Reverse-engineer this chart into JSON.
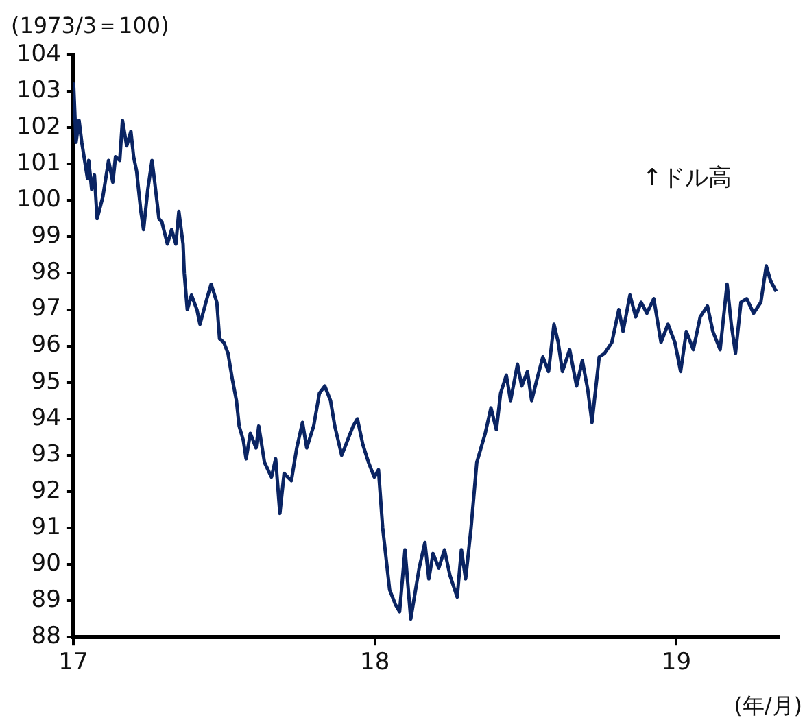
{
  "chart_data": {
    "type": "line",
    "ylabel": "(1973/3＝100)",
    "xlabel": "(年/月)",
    "annotations": [
      "↑ドル高"
    ],
    "xlim": [
      17,
      19.34
    ],
    "xticks": [
      17,
      18,
      19
    ],
    "ylim": [
      88,
      104
    ],
    "yticks": [
      88,
      89,
      90,
      91,
      92,
      93,
      94,
      95,
      96,
      97,
      98,
      99,
      100,
      101,
      102,
      103,
      104
    ],
    "grid": false,
    "legend": false,
    "marker": "none",
    "line_style": "solid",
    "series": [
      {
        "color": "#0a2463",
        "x": [
          17.0,
          17.001,
          17.009,
          17.019,
          17.028,
          17.047,
          17.051,
          17.061,
          17.07,
          17.079,
          17.098,
          17.117,
          17.131,
          17.14,
          17.154,
          17.163,
          17.177,
          17.191,
          17.2,
          17.21,
          17.224,
          17.233,
          17.247,
          17.261,
          17.27,
          17.284,
          17.294,
          17.312,
          17.326,
          17.34,
          17.35,
          17.364,
          17.368,
          17.378,
          17.392,
          17.41,
          17.42,
          17.443,
          17.457,
          17.476,
          17.485,
          17.499,
          17.513,
          17.527,
          17.541,
          17.55,
          17.564,
          17.573,
          17.587,
          17.606,
          17.615,
          17.634,
          17.657,
          17.671,
          17.685,
          17.699,
          17.723,
          17.741,
          17.76,
          17.774,
          17.797,
          17.816,
          17.834,
          17.853,
          17.867,
          17.89,
          17.909,
          17.928,
          17.942,
          17.96,
          17.979,
          17.998,
          18.012,
          18.026,
          18.049,
          18.068,
          18.082,
          18.1,
          18.119,
          18.147,
          18.166,
          18.179,
          18.193,
          18.212,
          18.231,
          18.249,
          18.273,
          18.287,
          18.301,
          18.319,
          18.338,
          18.352,
          18.366,
          18.385,
          18.403,
          18.417,
          18.436,
          18.45,
          18.473,
          18.487,
          18.506,
          18.52,
          18.538,
          18.557,
          18.576,
          18.594,
          18.608,
          18.622,
          18.646,
          18.669,
          18.688,
          18.706,
          18.72,
          18.744,
          18.762,
          18.786,
          18.809,
          18.823,
          18.846,
          18.865,
          18.883,
          18.902,
          18.925,
          18.949,
          18.972,
          18.995,
          19.014,
          19.033,
          19.056,
          19.079,
          19.103,
          19.121,
          19.145,
          19.168,
          19.182,
          19.196,
          19.214,
          19.233,
          19.256,
          19.28,
          19.298,
          19.312,
          19.331
        ],
        "values": [
          102.6,
          103.2,
          101.6,
          102.2,
          101.6,
          100.6,
          101.1,
          100.3,
          100.7,
          99.5,
          100.1,
          101.1,
          100.5,
          101.2,
          101.1,
          102.2,
          101.5,
          101.9,
          101.2,
          100.8,
          99.7,
          99.2,
          100.3,
          101.1,
          100.5,
          99.5,
          99.4,
          98.8,
          99.2,
          98.8,
          99.7,
          98.8,
          98.0,
          97.0,
          97.4,
          97.0,
          96.6,
          97.3,
          97.7,
          97.2,
          96.2,
          96.1,
          95.8,
          95.1,
          94.5,
          93.8,
          93.4,
          92.9,
          93.6,
          93.2,
          93.8,
          92.8,
          92.4,
          92.9,
          91.4,
          92.5,
          92.3,
          93.2,
          93.9,
          93.2,
          93.8,
          94.7,
          94.9,
          94.5,
          93.8,
          93.0,
          93.4,
          93.8,
          94.0,
          93.3,
          92.8,
          92.4,
          92.6,
          91.0,
          89.3,
          88.9,
          88.7,
          90.4,
          88.5,
          89.9,
          90.6,
          89.6,
          90.3,
          89.9,
          90.4,
          89.7,
          89.1,
          90.4,
          89.6,
          91.0,
          92.8,
          93.2,
          93.6,
          94.3,
          93.7,
          94.7,
          95.2,
          94.5,
          95.5,
          94.9,
          95.3,
          94.5,
          95.1,
          95.7,
          95.3,
          96.6,
          96.1,
          95.3,
          95.9,
          94.9,
          95.6,
          94.8,
          93.9,
          95.7,
          95.8,
          96.1,
          97.0,
          96.4,
          97.4,
          96.8,
          97.2,
          96.9,
          97.3,
          96.1,
          96.6,
          96.1,
          95.3,
          96.4,
          95.9,
          96.8,
          97.1,
          96.4,
          95.9,
          97.7,
          96.6,
          95.8,
          97.2,
          97.3,
          96.9,
          97.2,
          98.2,
          97.8,
          97.5
        ]
      }
    ]
  }
}
